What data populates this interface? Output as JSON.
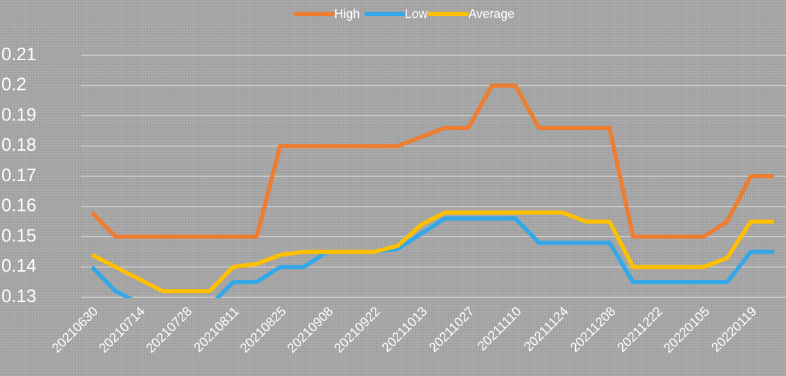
{
  "chart_data": {
    "type": "line",
    "categories": [
      "20210630",
      null,
      "20210714",
      null,
      "20210728",
      null,
      "20210811",
      null,
      "20210825",
      null,
      "20210908",
      null,
      "20210922",
      null,
      "20211013",
      null,
      "20211027",
      null,
      "20211110",
      null,
      "20211124",
      null,
      "20211208",
      null,
      "20211222",
      null,
      "20220105",
      null,
      "20220119",
      null
    ],
    "series": [
      {
        "name": "High",
        "color": "#ed7d31",
        "values": [
          0.158,
          0.15,
          0.15,
          0.15,
          0.15,
          0.15,
          0.15,
          0.15,
          0.18,
          0.18,
          0.18,
          0.18,
          0.18,
          0.18,
          0.183,
          0.186,
          0.186,
          0.2,
          0.2,
          0.186,
          0.186,
          0.186,
          0.186,
          0.15,
          0.15,
          0.15,
          0.15,
          0.155,
          0.17,
          0.17
        ]
      },
      {
        "name": "Low",
        "color": "#33a8e8",
        "values": [
          0.14,
          0.132,
          0.128,
          0.126,
          0.126,
          0.127,
          0.135,
          0.135,
          0.14,
          0.14,
          0.145,
          0.145,
          0.145,
          0.146,
          0.151,
          0.156,
          0.156,
          0.156,
          0.156,
          0.148,
          0.148,
          0.148,
          0.148,
          0.135,
          0.135,
          0.135,
          0.135,
          0.135,
          0.145,
          0.145
        ]
      },
      {
        "name": "Average",
        "color": "#ffc000",
        "values": [
          0.144,
          0.14,
          0.136,
          0.132,
          0.132,
          0.132,
          0.14,
          0.141,
          0.144,
          0.145,
          0.145,
          0.145,
          0.145,
          0.147,
          0.154,
          0.158,
          0.158,
          0.158,
          0.158,
          0.158,
          0.158,
          0.155,
          0.155,
          0.14,
          0.14,
          0.14,
          0.14,
          0.143,
          0.155,
          0.155
        ]
      }
    ],
    "ylim": [
      0.13,
      0.21
    ],
    "yticks": [
      0.13,
      0.14,
      0.15,
      0.16,
      0.17,
      0.18,
      0.19,
      0.2,
      0.21
    ],
    "grid": true,
    "legend": "top"
  }
}
